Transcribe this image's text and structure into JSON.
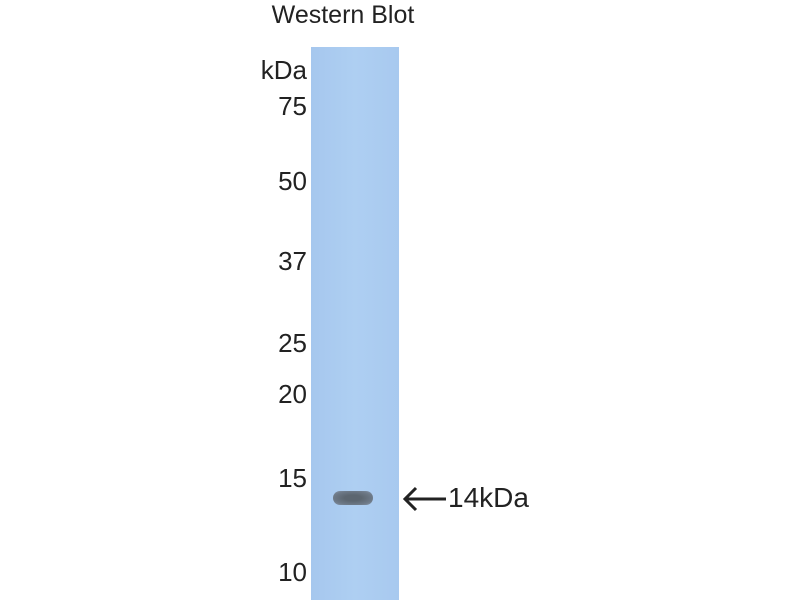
{
  "title": "Western Blot",
  "unit_label": "kDa",
  "markers": [
    "75",
    "50",
    "37",
    "25",
    "20",
    "15",
    "10"
  ],
  "band_annotation": "14kDa",
  "colors": {
    "membrane": "#aacbef",
    "band": "#5f6a76",
    "text": "#222222"
  }
}
